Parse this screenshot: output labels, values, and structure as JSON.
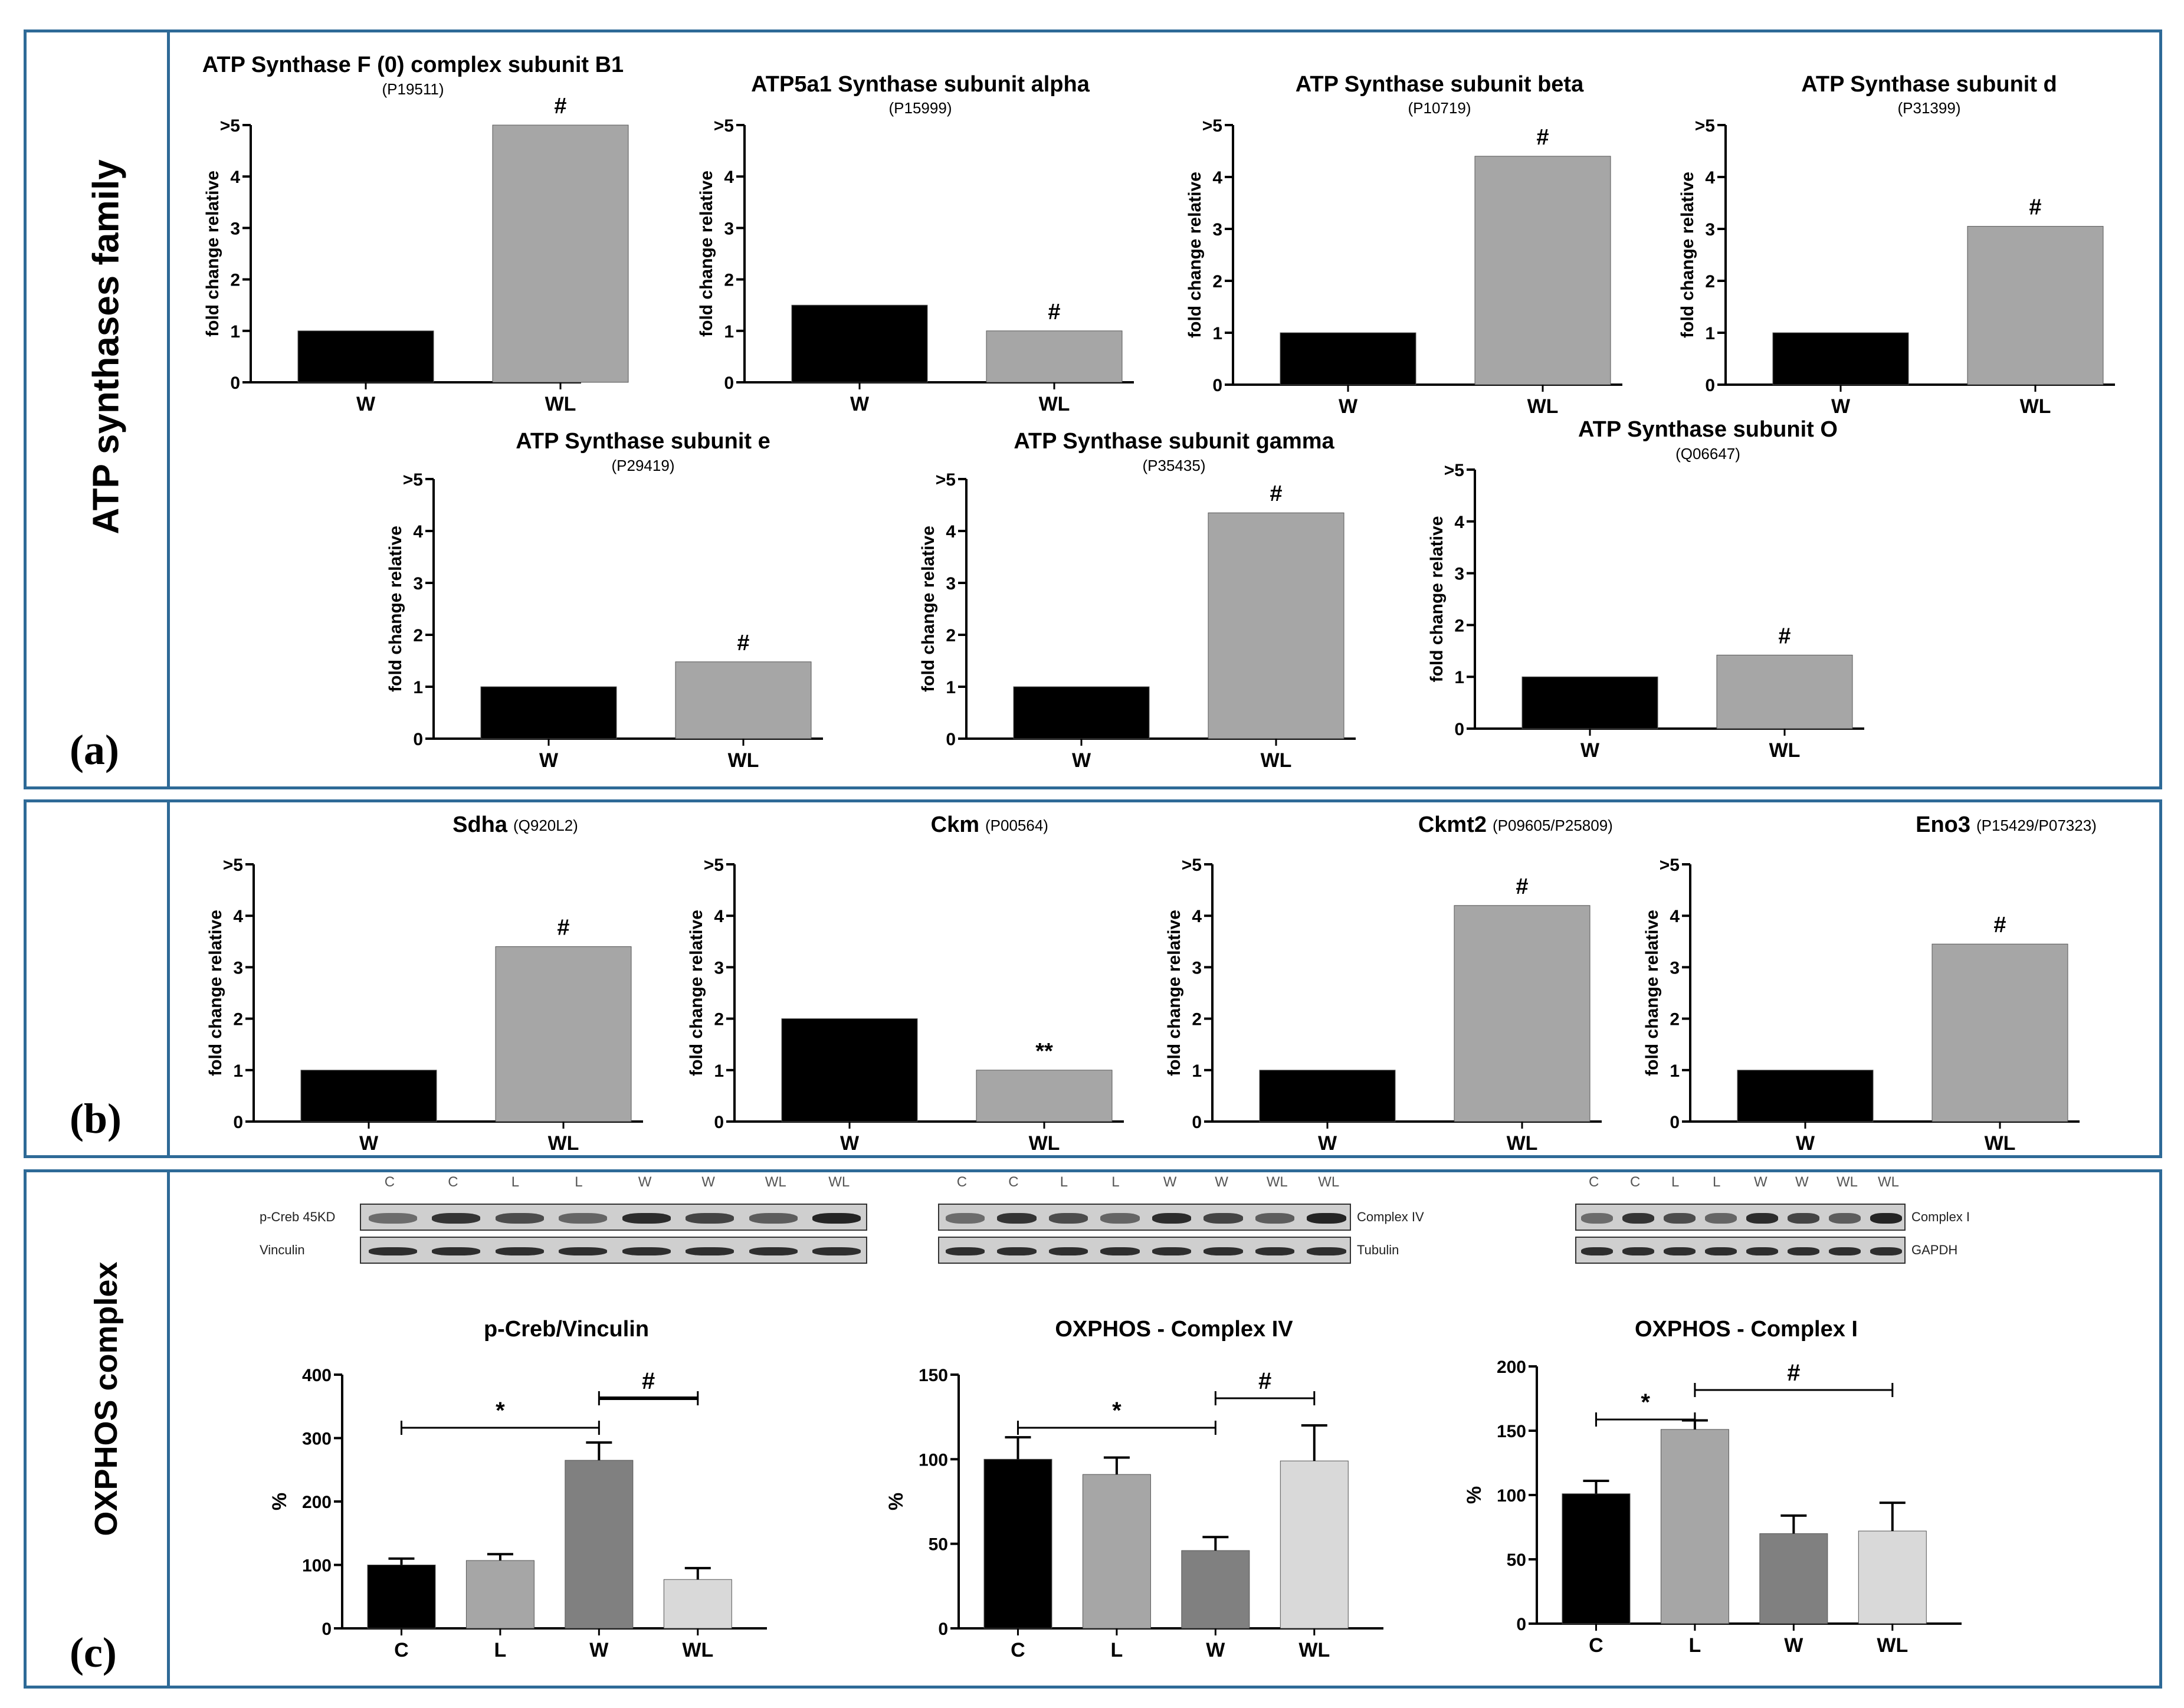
{
  "figure": {
    "panel_a_side_title": "ATP synthases family",
    "panel_c_side_title": "OXPHOS complex",
    "panel_a_letter": "(a)",
    "panel_b_letter": "(b)",
    "panel_c_letter": "(c)",
    "colors": {
      "frame": "#2e6a97",
      "W": "#000000",
      "WL": "#a6a6a6",
      "C": "#000000",
      "L": "#a6a6a6",
      "W3": "#808080",
      "WL3": "#d9d9d9"
    }
  },
  "blots": [
    {
      "lanes": [
        "C",
        "C",
        "L",
        "L",
        "W",
        "W",
        "WL",
        "WL"
      ],
      "strips": [
        "p-Creb 45KD",
        "Vinculin"
      ]
    },
    {
      "lanes": [
        "C",
        "C",
        "L",
        "L",
        "W",
        "W",
        "WL",
        "WL"
      ],
      "strips": [
        "Complex IV",
        "Tubulin"
      ]
    },
    {
      "lanes": [
        "C",
        "C",
        "L",
        "L",
        "W",
        "W",
        "WL",
        "WL"
      ],
      "strips": [
        "Complex I",
        "GAPDH"
      ]
    }
  ],
  "chart_data": [
    {
      "type": "bar",
      "title": "ATP Synthase F (0) complex subunit B1",
      "subtitle": "(P19511)",
      "categories": [
        "W",
        "WL"
      ],
      "values": [
        1,
        5
      ],
      "ylabel": "fold change relative",
      "ylim": [
        0,
        5
      ],
      "yticks": [
        "0",
        "1",
        "2",
        "3",
        "4",
        ">5"
      ],
      "annotations": [
        {
          "category": "WL",
          "text": "#"
        }
      ]
    },
    {
      "type": "bar",
      "title": "ATP5a1 Synthase subunit alpha",
      "subtitle": "(P15999)",
      "categories": [
        "W",
        "WL"
      ],
      "values": [
        1.5,
        1
      ],
      "ylabel": "fold change relative",
      "ylim": [
        0,
        5
      ],
      "yticks": [
        "0",
        "1",
        "2",
        "3",
        "4",
        ">5"
      ],
      "annotations": [
        {
          "category": "WL",
          "text": "#"
        }
      ]
    },
    {
      "type": "bar",
      "title": "ATP Synthase subunit beta",
      "subtitle": "(P10719)",
      "categories": [
        "W",
        "WL"
      ],
      "values": [
        1,
        4.4
      ],
      "ylabel": "fold change relative",
      "ylim": [
        0,
        5
      ],
      "yticks": [
        "0",
        "1",
        "2",
        "3",
        "4",
        ">5"
      ],
      "annotations": [
        {
          "category": "WL",
          "text": "#"
        }
      ]
    },
    {
      "type": "bar",
      "title": "ATP Synthase subunit d",
      "subtitle": "(P31399)",
      "categories": [
        "W",
        "WL"
      ],
      "values": [
        1,
        3.05
      ],
      "ylabel": "fold change relative",
      "ylim": [
        0,
        5
      ],
      "yticks": [
        "0",
        "1",
        "2",
        "3",
        "4",
        ">5"
      ],
      "annotations": [
        {
          "category": "WL",
          "text": "#"
        }
      ]
    },
    {
      "type": "bar",
      "title": "ATP Synthase subunit e",
      "subtitle": "(P29419)",
      "categories": [
        "W",
        "WL"
      ],
      "values": [
        1,
        1.48
      ],
      "ylabel": "fold change relative",
      "ylim": [
        0,
        5
      ],
      "yticks": [
        "0",
        "1",
        "2",
        "3",
        "4",
        ">5"
      ],
      "annotations": [
        {
          "category": "WL",
          "text": "#"
        }
      ]
    },
    {
      "type": "bar",
      "title": "ATP Synthase subunit gamma",
      "subtitle": "(P35435)",
      "categories": [
        "W",
        "WL"
      ],
      "values": [
        1,
        4.35
      ],
      "ylabel": "fold change relative",
      "ylim": [
        0,
        5
      ],
      "yticks": [
        "0",
        "1",
        "2",
        "3",
        "4",
        ">5"
      ],
      "annotations": [
        {
          "category": "WL",
          "text": "#"
        }
      ]
    },
    {
      "type": "bar",
      "title": "ATP Synthase subunit O",
      "subtitle": "(Q06647)",
      "categories": [
        "W",
        "WL"
      ],
      "values": [
        1,
        1.42
      ],
      "ylabel": "fold change relative",
      "ylim": [
        0,
        5
      ],
      "yticks": [
        "0",
        "1",
        "2",
        "3",
        "4",
        ">5"
      ],
      "annotations": [
        {
          "category": "WL",
          "text": "#"
        }
      ]
    },
    {
      "type": "bar",
      "title": "Sdha",
      "subtitle": "(Q920L2)",
      "categories": [
        "W",
        "WL"
      ],
      "values": [
        1,
        3.4
      ],
      "ylabel": "fold change relative",
      "ylim": [
        0,
        5
      ],
      "yticks": [
        "0",
        "1",
        "2",
        "3",
        "4",
        ">5"
      ],
      "annotations": [
        {
          "category": "WL",
          "text": "#"
        }
      ]
    },
    {
      "type": "bar",
      "title": "Ckm",
      "subtitle": "(P00564)",
      "categories": [
        "W",
        "WL"
      ],
      "values": [
        2,
        1
      ],
      "ylabel": "fold change relative",
      "ylim": [
        0,
        5
      ],
      "yticks": [
        "0",
        "1",
        "2",
        "3",
        "4",
        ">5"
      ],
      "annotations": [
        {
          "category": "WL",
          "text": "**"
        }
      ]
    },
    {
      "type": "bar",
      "title": "Ckmt2",
      "subtitle": "(P09605/P25809)",
      "categories": [
        "W",
        "WL"
      ],
      "values": [
        1,
        4.2
      ],
      "ylabel": "fold change relative",
      "ylim": [
        0,
        5
      ],
      "yticks": [
        "0",
        "1",
        "2",
        "3",
        "4",
        ">5"
      ],
      "annotations": [
        {
          "category": "WL",
          "text": "#"
        }
      ]
    },
    {
      "type": "bar",
      "title": "Eno3",
      "subtitle": "(P15429/P07323)",
      "categories": [
        "W",
        "WL"
      ],
      "values": [
        1,
        3.45
      ],
      "ylabel": "fold change relative",
      "ylim": [
        0,
        5
      ],
      "yticks": [
        "0",
        "1",
        "2",
        "3",
        "4",
        ">5"
      ],
      "annotations": [
        {
          "category": "WL",
          "text": "#"
        }
      ]
    },
    {
      "type": "bar",
      "title": "p-Creb/Vinculin",
      "categories": [
        "C",
        "L",
        "W",
        "WL"
      ],
      "values": [
        100,
        107,
        265,
        77
      ],
      "errors": [
        10,
        10,
        28,
        18
      ],
      "ylabel": "%",
      "ylim": [
        0,
        400
      ],
      "yticks": [
        "0",
        "100",
        "200",
        "300",
        "400"
      ],
      "brackets": [
        {
          "from": "C",
          "to": "W",
          "text": "*"
        },
        {
          "from": "W",
          "to": "WL",
          "text": "#"
        }
      ]
    },
    {
      "type": "bar",
      "title": "OXPHOS - Complex IV",
      "categories": [
        "C",
        "L",
        "W",
        "WL"
      ],
      "values": [
        100,
        91,
        46,
        99
      ],
      "errors": [
        13,
        10,
        8,
        21
      ],
      "ylabel": "%",
      "ylim": [
        0,
        150
      ],
      "yticks": [
        "0",
        "50",
        "100",
        "150"
      ],
      "brackets": [
        {
          "from": "C",
          "to": "W",
          "text": "*"
        },
        {
          "from": "W",
          "to": "WL",
          "text": "#"
        }
      ]
    },
    {
      "type": "bar",
      "title": "OXPHOS - Complex I",
      "categories": [
        "C",
        "L",
        "W",
        "WL"
      ],
      "values": [
        101,
        151,
        70,
        72
      ],
      "errors": [
        10,
        7,
        14,
        22
      ],
      "ylabel": "%",
      "ylim": [
        0,
        200
      ],
      "yticks": [
        "0",
        "50",
        "100",
        "150",
        "200"
      ],
      "brackets": [
        {
          "from": "C",
          "to": "L",
          "text": "*"
        },
        {
          "from": "L",
          "to": "WL",
          "text": "#"
        }
      ]
    }
  ]
}
